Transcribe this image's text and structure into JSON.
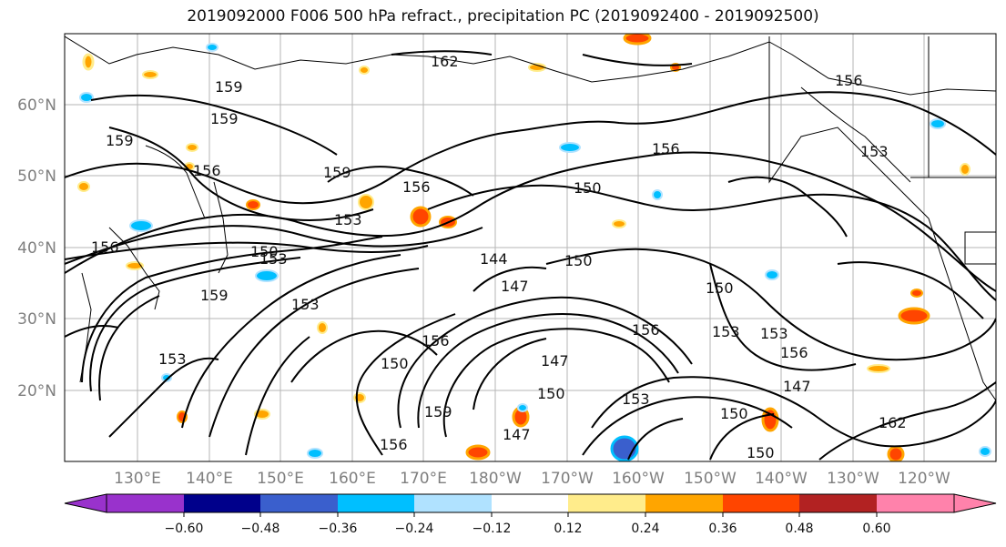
{
  "title": "2019092000 F006 500 hPa refract., precipitation PC (2019092400 - 2019092500)",
  "lat_labels": [
    "60°N",
    "50°N",
    "40°N",
    "30°N",
    "20°N"
  ],
  "lon_labels": [
    "130°E",
    "140°E",
    "150°E",
    "160°E",
    "170°E",
    "180°W",
    "170°W",
    "160°W",
    "150°W",
    "140°W",
    "130°W",
    "120°W"
  ],
  "colorbar": {
    "colors": [
      "#9932cc",
      "#00008b",
      "#3a5fcd",
      "#00bfff",
      "#b0e2ff",
      "#ffffff",
      "#ffec8b",
      "#ffa500",
      "#ff4500",
      "#b22222",
      "#ff82ab"
    ],
    "tick_labels": [
      "−0.60",
      "−0.48",
      "−0.36",
      "−0.24",
      "−0.12",
      "0.12",
      "0.24",
      "0.36",
      "0.48",
      "0.60"
    ]
  },
  "contour_labels": [
    "162",
    "159",
    "159",
    "159",
    "156",
    "159",
    "153",
    "156",
    "156",
    "150",
    "153",
    "159",
    "153",
    "150",
    "156",
    "150",
    "144",
    "147",
    "150",
    "147",
    "153",
    "156",
    "156",
    "150",
    "153",
    "147",
    "150",
    "150",
    "153",
    "156",
    "147",
    "162",
    "156",
    "159",
    "156",
    "150",
    "153",
    "153"
  ]
}
